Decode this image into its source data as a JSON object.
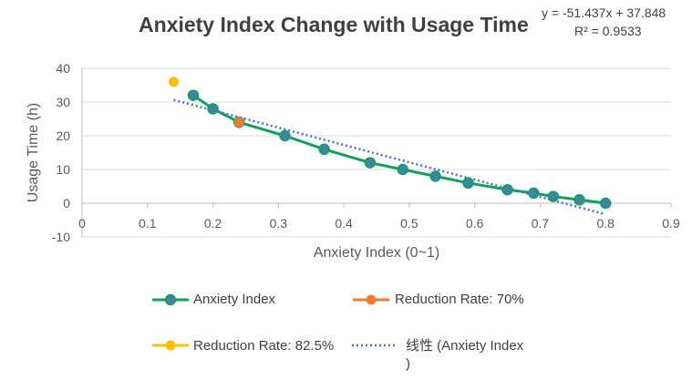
{
  "chart_data": {
    "type": "line",
    "title": "Anxiety Index Change with Usage Time",
    "xlabel": "Anxiety Index (0~1)",
    "ylabel": "Usage Time (h)",
    "xlim": [
      0,
      0.9
    ],
    "ylim": [
      -10,
      40
    ],
    "x_ticks": [
      "0",
      "0.1",
      "0.2",
      "0.3",
      "0.4",
      "0.5",
      "0.6",
      "0.7",
      "0.8",
      "0.9"
    ],
    "y_ticks": [
      "40",
      "30",
      "20",
      "10",
      "0",
      "-10"
    ],
    "grid": "horizontal",
    "series": [
      {
        "name": "Anxiety Index",
        "color": "#12a15a",
        "marker_color": "#3d85a8",
        "x": [
          0.17,
          0.2,
          0.24,
          0.31,
          0.37,
          0.44,
          0.49,
          0.54,
          0.59,
          0.65,
          0.69,
          0.72,
          0.76,
          0.8
        ],
        "y": [
          32,
          28,
          24,
          20,
          16,
          12,
          10,
          8,
          6,
          4,
          3,
          2,
          1,
          0
        ]
      },
      {
        "name": "Reduction Rate: 70%",
        "color": "#ed7d31",
        "x": [
          0.24
        ],
        "y": [
          24
        ]
      },
      {
        "name": "Reduction Rate: 82.5%",
        "color": "#ffc000",
        "x": [
          0.14
        ],
        "y": [
          36
        ]
      }
    ],
    "trendline": {
      "name": "线性 (Anxiety Index\n)",
      "color": "#4472c4",
      "slope": -51.437,
      "intercept": 37.848,
      "x_range": [
        0.14,
        0.8
      ],
      "equation": "y = -51.437x + 37.848",
      "r_squared": "R² = 0.9533"
    },
    "legend": {
      "placement": "bottom",
      "entries": [
        "Anxiety Index",
        "Reduction Rate: 70%",
        "Reduction Rate: 82.5%",
        "线性 (Anxiety Index\n)"
      ]
    }
  }
}
